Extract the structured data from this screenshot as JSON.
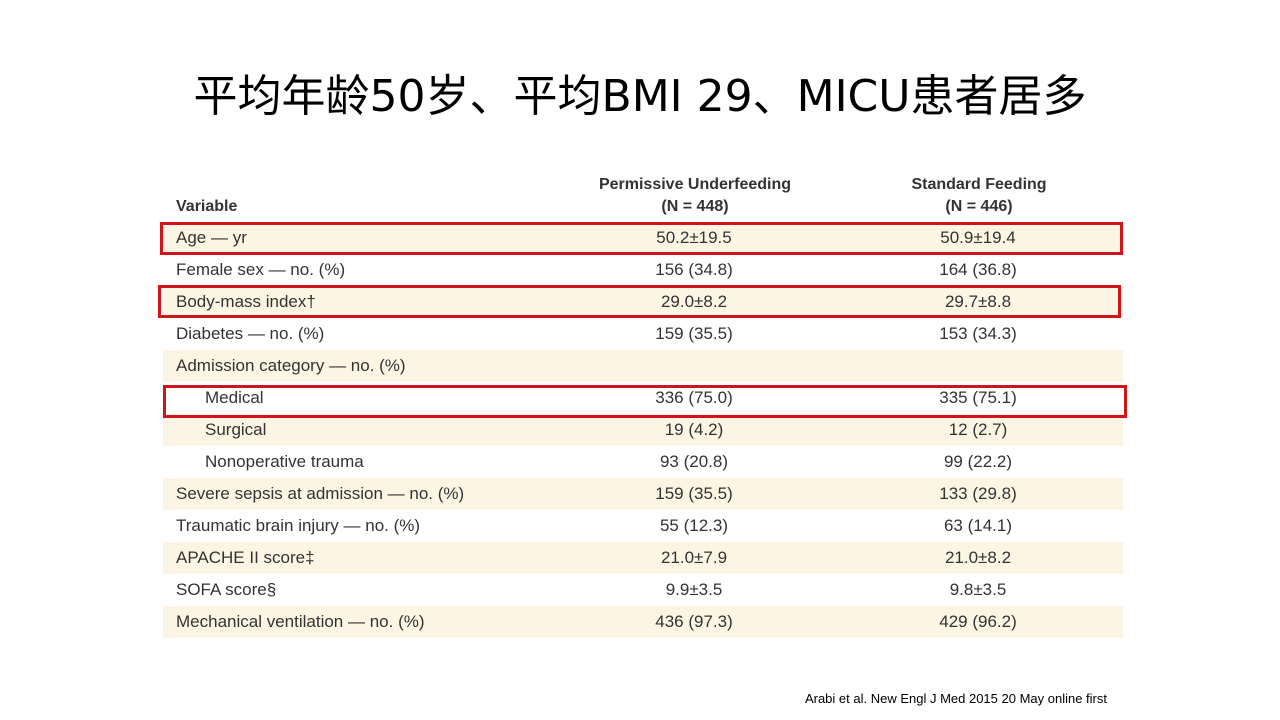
{
  "title": "平均年龄50岁、平均BMI 29、MICU患者居多",
  "table": {
    "header": {
      "variable": "Variable",
      "col1": [
        "Permissive Underfeeding",
        "(N = 448)"
      ],
      "col2": [
        "Standard Feeding",
        "(N = 446)"
      ]
    },
    "rows": [
      [
        "Age — yr",
        "50.2±19.5",
        "50.9±19.4"
      ],
      [
        "Female sex — no. (%)",
        "156 (34.8)",
        "164 (36.8)"
      ],
      [
        "Body-mass index†",
        "29.0±8.2",
        "29.7±8.8"
      ],
      [
        "Diabetes — no. (%)",
        "159 (35.5)",
        "153 (34.3)"
      ],
      [
        "Admission category — no. (%)"
      ],
      [
        "Medical",
        "336 (75.0)",
        "335 (75.1)"
      ],
      [
        "Surgical",
        "19 (4.2)",
        "12 (2.7)"
      ],
      [
        "Nonoperative trauma",
        "93 (20.8)",
        "99 (22.2)"
      ],
      [
        "Severe sepsis at admission — no. (%)",
        "159 (35.5)",
        "133 (29.8)"
      ],
      [
        "Traumatic brain injury — no. (%)",
        "55 (12.3)",
        "63 (14.1)"
      ],
      [
        "APACHE II score‡",
        "21.0±7.9",
        "21.0±8.2"
      ],
      [
        "SOFA score§",
        "9.9±3.5",
        "9.8±3.5"
      ],
      [
        "Mechanical ventilation — no. (%)",
        "436 (97.3)",
        "429 (96.2)"
      ]
    ]
  },
  "citation": "Arabi et al. New Engl J Med 2015 20 May online first"
}
